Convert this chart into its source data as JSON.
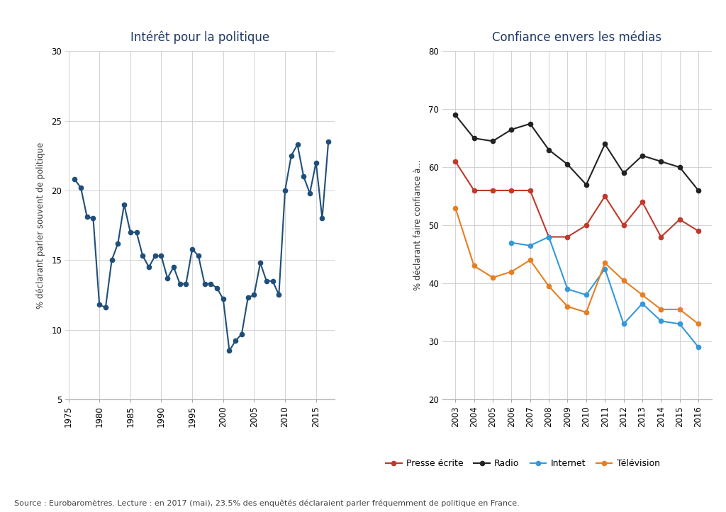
{
  "left_title": "Intérêt pour la politique",
  "left_ylabel": "% déclarant parler souvent de politique",
  "left_ylim": [
    5,
    30
  ],
  "left_yticks": [
    5,
    10,
    15,
    20,
    25,
    30
  ],
  "left_xticks": [
    1975,
    1980,
    1985,
    1990,
    1995,
    2000,
    2005,
    2010,
    2015
  ],
  "left_x": [
    1976,
    1977,
    1978,
    1979,
    1980,
    1981,
    1982,
    1983,
    1984,
    1985,
    1986,
    1987,
    1988,
    1989,
    1990,
    1991,
    1992,
    1993,
    1994,
    1995,
    1996,
    1997,
    1998,
    1999,
    2000,
    2001,
    2002,
    2003,
    2004,
    2005,
    2006,
    2007,
    2008,
    2009,
    2010,
    2011,
    2012,
    2013,
    2014,
    2015,
    2016,
    2017
  ],
  "left_y": [
    20.8,
    20.2,
    18.1,
    18.0,
    11.8,
    11.6,
    15.0,
    16.2,
    19.0,
    17.0,
    17.0,
    15.3,
    14.5,
    15.3,
    15.3,
    13.7,
    14.5,
    13.3,
    13.3,
    15.8,
    15.3,
    13.3,
    13.3,
    13.0,
    12.2,
    8.5,
    9.2,
    9.7,
    12.3,
    12.5,
    14.8,
    13.5,
    13.5,
    12.5,
    20.0,
    22.5,
    23.3,
    21.0,
    19.8,
    22.0,
    18.0,
    23.5
  ],
  "left_color": "#1f4e79",
  "right_title": "Confiance envers les médias",
  "right_ylabel": "% déclarant faire confiance à...",
  "right_ylim": [
    20,
    80
  ],
  "right_yticks": [
    20,
    30,
    40,
    50,
    60,
    70,
    80
  ],
  "right_xticks": [
    2003,
    2004,
    2005,
    2006,
    2007,
    2008,
    2009,
    2010,
    2011,
    2012,
    2013,
    2014,
    2015,
    2016
  ],
  "right_x": [
    2003,
    2004,
    2005,
    2006,
    2007,
    2008,
    2009,
    2010,
    2011,
    2012,
    2013,
    2014,
    2015,
    2016
  ],
  "presse_y": [
    61.0,
    56.0,
    56.0,
    56.0,
    56.0,
    48.0,
    48.0,
    50.0,
    55.0,
    50.0,
    54.0,
    48.0,
    51.0,
    49.0
  ],
  "radio_y": [
    69.0,
    65.0,
    64.5,
    66.5,
    67.5,
    63.0,
    60.5,
    57.0,
    64.0,
    59.0,
    62.0,
    61.0,
    60.0,
    56.0
  ],
  "internet_x": [
    2006,
    2007,
    2008,
    2009,
    2010,
    2011,
    2012,
    2013,
    2014,
    2015,
    2016
  ],
  "internet_y": [
    47.0,
    46.5,
    48.0,
    39.0,
    38.0,
    42.5,
    33.0,
    36.5,
    33.5,
    33.0,
    29.0
  ],
  "television_y": [
    53.0,
    43.0,
    41.0,
    42.0,
    44.0,
    39.5,
    36.0,
    35.0,
    43.5,
    40.5,
    38.0,
    35.5,
    35.5,
    33.0
  ],
  "presse_color": "#c0392b",
  "radio_color": "#222222",
  "internet_color": "#3498db",
  "television_color": "#e67e22",
  "legend_labels": [
    "Presse écrite",
    "Radio",
    "Internet",
    "Télévision"
  ],
  "source_text": "Source : Eurobaromètres. Lecture : en 2017 (mai), 23.5% des enquêtés déclaraient parler fréquemment de politique en France.",
  "background_color": "#ffffff",
  "grid_color": "#cccccc",
  "title_color": "#1f3864"
}
